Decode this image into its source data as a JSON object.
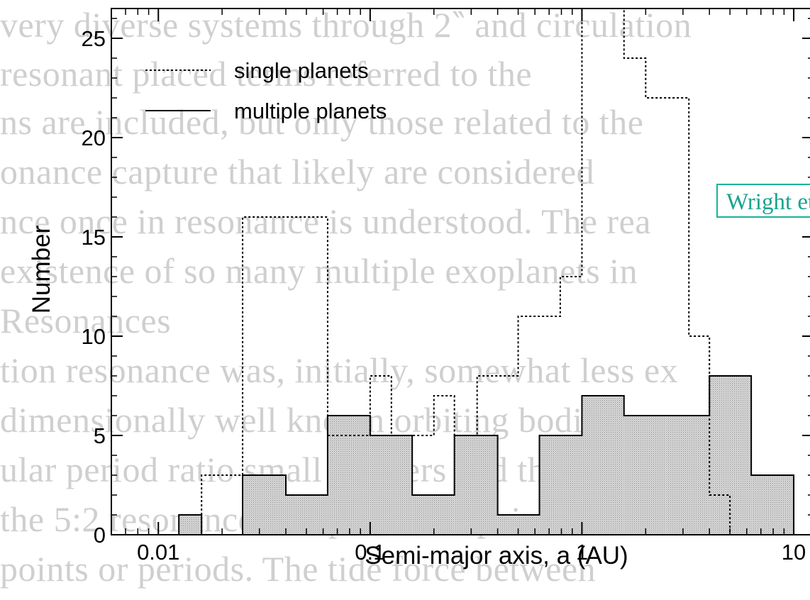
{
  "background_lines": [
    "very diverse systems through 2‶ and circulation",
    "resonant placed terms referred to the",
    "ns are included, but only those related to the",
    "onance capture that likely are considered",
    "nce once in resonance is understood. The rea",
    "existence of so many multiple exoplanets in",
    "Resonances",
    "tion resonance was, initially, somewhat less ex",
    "dimensionally well known orbiting bodies",
    "ular period ratio small integers and the",
    "the 5:2 resonance of a particular pair between",
    "points or periods. The tide force between"
  ],
  "annotation": {
    "text": "Wright et al."
  },
  "chart_data": {
    "type": "histogram",
    "xlabel": "Semi-major axis, a (AU)",
    "ylabel": "Number",
    "xscale": "log",
    "xlim": [
      0.006,
      16
    ],
    "ylim": [
      0,
      26.5
    ],
    "xticks": [
      {
        "value": 0.01,
        "label": "0.01"
      },
      {
        "value": 0.1,
        "label": "0.1"
      },
      {
        "value": 1,
        "label": "1"
      },
      {
        "value": 10,
        "label": "10"
      }
    ],
    "yticks": [
      {
        "value": 0,
        "label": "0"
      },
      {
        "value": 5,
        "label": "5"
      },
      {
        "value": 10,
        "label": "10"
      },
      {
        "value": 15,
        "label": "15"
      },
      {
        "value": 20,
        "label": "20"
      },
      {
        "value": 25,
        "label": "25"
      }
    ],
    "legend": {
      "position": "top-left"
    },
    "series": [
      {
        "name": "single planets",
        "style": "dotted",
        "bins": [
          {
            "x0": 0.0125,
            "x1": 0.016,
            "value": 0
          },
          {
            "x0": 0.016,
            "x1": 0.02,
            "value": 3
          },
          {
            "x0": 0.02,
            "x1": 0.025,
            "value": 3
          },
          {
            "x0": 0.025,
            "x1": 0.032,
            "value": 16
          },
          {
            "x0": 0.032,
            "x1": 0.04,
            "value": 16
          },
          {
            "x0": 0.04,
            "x1": 0.05,
            "value": 16
          },
          {
            "x0": 0.05,
            "x1": 0.063,
            "value": 16
          },
          {
            "x0": 0.063,
            "x1": 0.079,
            "value": 5
          },
          {
            "x0": 0.079,
            "x1": 0.1,
            "value": 5
          },
          {
            "x0": 0.1,
            "x1": 0.126,
            "value": 8
          },
          {
            "x0": 0.126,
            "x1": 0.158,
            "value": 5
          },
          {
            "x0": 0.158,
            "x1": 0.2,
            "value": 5
          },
          {
            "x0": 0.2,
            "x1": 0.25,
            "value": 7
          },
          {
            "x0": 0.25,
            "x1": 0.32,
            "value": 5
          },
          {
            "x0": 0.32,
            "x1": 0.4,
            "value": 8
          },
          {
            "x0": 0.4,
            "x1": 0.5,
            "value": 8
          },
          {
            "x0": 0.5,
            "x1": 0.63,
            "value": 11
          },
          {
            "x0": 0.63,
            "x1": 0.79,
            "value": 11
          },
          {
            "x0": 0.79,
            "x1": 1.0,
            "value": 13
          },
          {
            "x0": 1.0,
            "x1": 1.26,
            "value": 28
          },
          {
            "x0": 1.26,
            "x1": 1.58,
            "value": 28
          },
          {
            "x0": 1.58,
            "x1": 2.0,
            "value": 24
          },
          {
            "x0": 2.0,
            "x1": 2.5,
            "value": 22
          },
          {
            "x0": 2.5,
            "x1": 3.2,
            "value": 22
          },
          {
            "x0": 3.2,
            "x1": 4.0,
            "value": 10
          },
          {
            "x0": 4.0,
            "x1": 5.0,
            "value": 2
          }
        ]
      },
      {
        "name": "multiple planets",
        "style": "solid-filled",
        "bins": [
          {
            "x0": 0.0125,
            "x1": 0.016,
            "value": 1
          },
          {
            "x0": 0.016,
            "x1": 0.025,
            "value": 0
          },
          {
            "x0": 0.025,
            "x1": 0.04,
            "value": 3
          },
          {
            "x0": 0.04,
            "x1": 0.063,
            "value": 2
          },
          {
            "x0": 0.063,
            "x1": 0.1,
            "value": 6
          },
          {
            "x0": 0.1,
            "x1": 0.158,
            "value": 5
          },
          {
            "x0": 0.158,
            "x1": 0.25,
            "value": 2
          },
          {
            "x0": 0.25,
            "x1": 0.4,
            "value": 5
          },
          {
            "x0": 0.4,
            "x1": 0.63,
            "value": 1
          },
          {
            "x0": 0.63,
            "x1": 1.0,
            "value": 5
          },
          {
            "x0": 1.0,
            "x1": 1.58,
            "value": 7
          },
          {
            "x0": 1.58,
            "x1": 2.5,
            "value": 6
          },
          {
            "x0": 2.5,
            "x1": 4.0,
            "value": 6
          },
          {
            "x0": 4.0,
            "x1": 6.3,
            "value": 8
          },
          {
            "x0": 6.3,
            "x1": 10.0,
            "value": 3
          }
        ]
      }
    ]
  }
}
